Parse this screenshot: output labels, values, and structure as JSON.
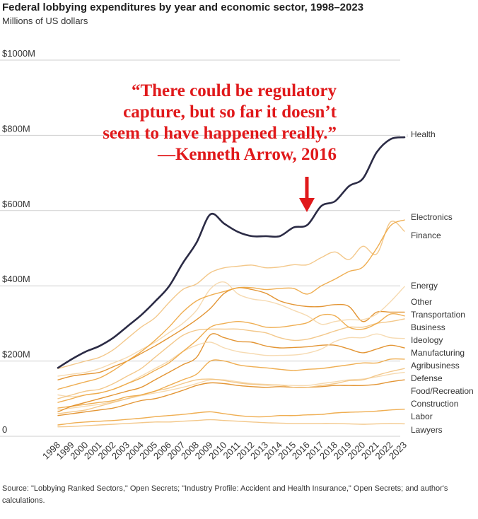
{
  "chart_data": {
    "type": "line",
    "title": "Federal lobbying expenditures by year and economic sector, 1998–2023",
    "subtitle": "Millions of US dollars",
    "x": [
      1998,
      1999,
      2000,
      2001,
      2002,
      2003,
      2004,
      2005,
      2006,
      2007,
      2008,
      2009,
      2010,
      2011,
      2012,
      2013,
      2014,
      2015,
      2016,
      2017,
      2018,
      2019,
      2020,
      2021,
      2022,
      2023
    ],
    "ylim": [
      0,
      1000
    ],
    "yticks": [
      {
        "value": 0,
        "label": "0"
      },
      {
        "value": 200,
        "label": "$200M"
      },
      {
        "value": 400,
        "label": "$400M"
      },
      {
        "value": 600,
        "label": "$600M"
      },
      {
        "value": 800,
        "label": "$800M"
      },
      {
        "value": 1000,
        "label": "$1000M"
      }
    ],
    "grid": true,
    "colors": {
      "highlight": "#2b2b45",
      "palette": [
        "#e08a1e",
        "#eda53f",
        "#f2c27e",
        "#f5d6a8"
      ]
    },
    "series": [
      {
        "name": "Health",
        "values": [
          182,
          205,
          225,
          240,
          262,
          292,
          322,
          358,
          398,
          460,
          515,
          590,
          565,
          543,
          532,
          532,
          532,
          555,
          562,
          612,
          625,
          665,
          685,
          755,
          790,
          795
        ]
      },
      {
        "name": "Electronics",
        "values": [
          125,
          135,
          145,
          155,
          175,
          200,
          225,
          255,
          290,
          330,
          360,
          375,
          385,
          395,
          395,
          390,
          393,
          393,
          378,
          400,
          418,
          438,
          450,
          500,
          560,
          575
        ]
      },
      {
        "name": "Finance",
        "values": [
          180,
          190,
          200,
          210,
          230,
          260,
          290,
          315,
          355,
          390,
          405,
          435,
          448,
          452,
          455,
          448,
          450,
          456,
          456,
          475,
          490,
          470,
          505,
          485,
          570,
          545
        ]
      },
      {
        "name": "Energy",
        "values": [
          160,
          165,
          170,
          180,
          195,
          210,
          230,
          250,
          275,
          300,
          335,
          392,
          410,
          378,
          365,
          360,
          350,
          335,
          320,
          298,
          305,
          310,
          310,
          325,
          358,
          398
        ]
      },
      {
        "name": "Other",
        "values": [
          150,
          160,
          165,
          170,
          185,
          200,
          220,
          240,
          262,
          285,
          310,
          340,
          380,
          395,
          390,
          380,
          360,
          350,
          345,
          345,
          350,
          345,
          305,
          330,
          330,
          330
        ]
      },
      {
        "name": "Transportation",
        "values": [
          90,
          100,
          110,
          115,
          125,
          140,
          155,
          175,
          195,
          225,
          255,
          290,
          300,
          305,
          300,
          290,
          290,
          295,
          302,
          322,
          320,
          290,
          285,
          300,
          325,
          320
        ]
      },
      {
        "name": "Business",
        "values": [
          100,
          110,
          120,
          125,
          140,
          160,
          180,
          210,
          240,
          268,
          282,
          285,
          285,
          285,
          280,
          275,
          262,
          255,
          258,
          268,
          280,
          290,
          290,
          300,
          305,
          312
        ]
      },
      {
        "name": "Ideology",
        "values": [
          110,
          105,
          110,
          115,
          125,
          140,
          160,
          180,
          200,
          225,
          242,
          250,
          235,
          225,
          220,
          215,
          215,
          216,
          221,
          232,
          252,
          262,
          262,
          272,
          262,
          260
        ]
      },
      {
        "name": "Manufacturing",
        "values": [
          65,
          80,
          90,
          100,
          110,
          120,
          130,
          150,
          170,
          190,
          210,
          270,
          262,
          252,
          250,
          240,
          235,
          236,
          238,
          242,
          242,
          232,
          222,
          232,
          242,
          235
        ]
      },
      {
        "name": "Agribusiness",
        "values": [
          75,
          80,
          85,
          90,
          95,
          105,
          110,
          120,
          135,
          150,
          165,
          200,
          200,
          190,
          185,
          182,
          178,
          175,
          178,
          180,
          185,
          190,
          195,
          195,
          205,
          205
        ]
      },
      {
        "name": "Defense",
        "values": [
          60,
          65,
          70,
          80,
          90,
          100,
          110,
          120,
          128,
          140,
          150,
          152,
          148,
          142,
          138,
          136,
          136,
          130,
          130,
          135,
          140,
          148,
          150,
          162,
          172,
          180
        ]
      },
      {
        "name": "Food/Recreation",
        "values": [
          70,
          75,
          80,
          85,
          92,
          100,
          108,
          115,
          122,
          130,
          140,
          150,
          150,
          145,
          140,
          138,
          136,
          135,
          135,
          140,
          145,
          150,
          152,
          158,
          165,
          170
        ]
      },
      {
        "name": "Construction",
        "values": [
          55,
          60,
          65,
          70,
          75,
          85,
          95,
          100,
          110,
          122,
          135,
          142,
          140,
          135,
          132,
          130,
          132,
          130,
          130,
          132,
          135,
          135,
          135,
          138,
          145,
          150
        ]
      },
      {
        "name": "Labor",
        "values": [
          30,
          35,
          38,
          40,
          42,
          45,
          48,
          52,
          55,
          58,
          62,
          65,
          60,
          55,
          52,
          52,
          55,
          55,
          57,
          58,
          62,
          64,
          65,
          67,
          70,
          72
        ]
      },
      {
        "name": "Lawyers",
        "values": [
          25,
          26,
          28,
          30,
          32,
          34,
          36,
          38,
          38,
          40,
          42,
          44,
          42,
          40,
          38,
          36,
          35,
          34,
          34,
          34,
          34,
          33,
          32,
          33,
          34,
          33
        ]
      }
    ]
  },
  "quote": {
    "lines": [
      "“There could be regulatory",
      "capture, but so far it doesn’t",
      "seem to have happened really.”",
      "—Kenneth Arrow, 2016"
    ],
    "color": "#e0191b"
  },
  "source": "Source: \"Lobbying Ranked Sectors,\" Open Secrets; \"Industry Profile: Accident and Health Insurance,\" Open Secrets; and author's calculations."
}
